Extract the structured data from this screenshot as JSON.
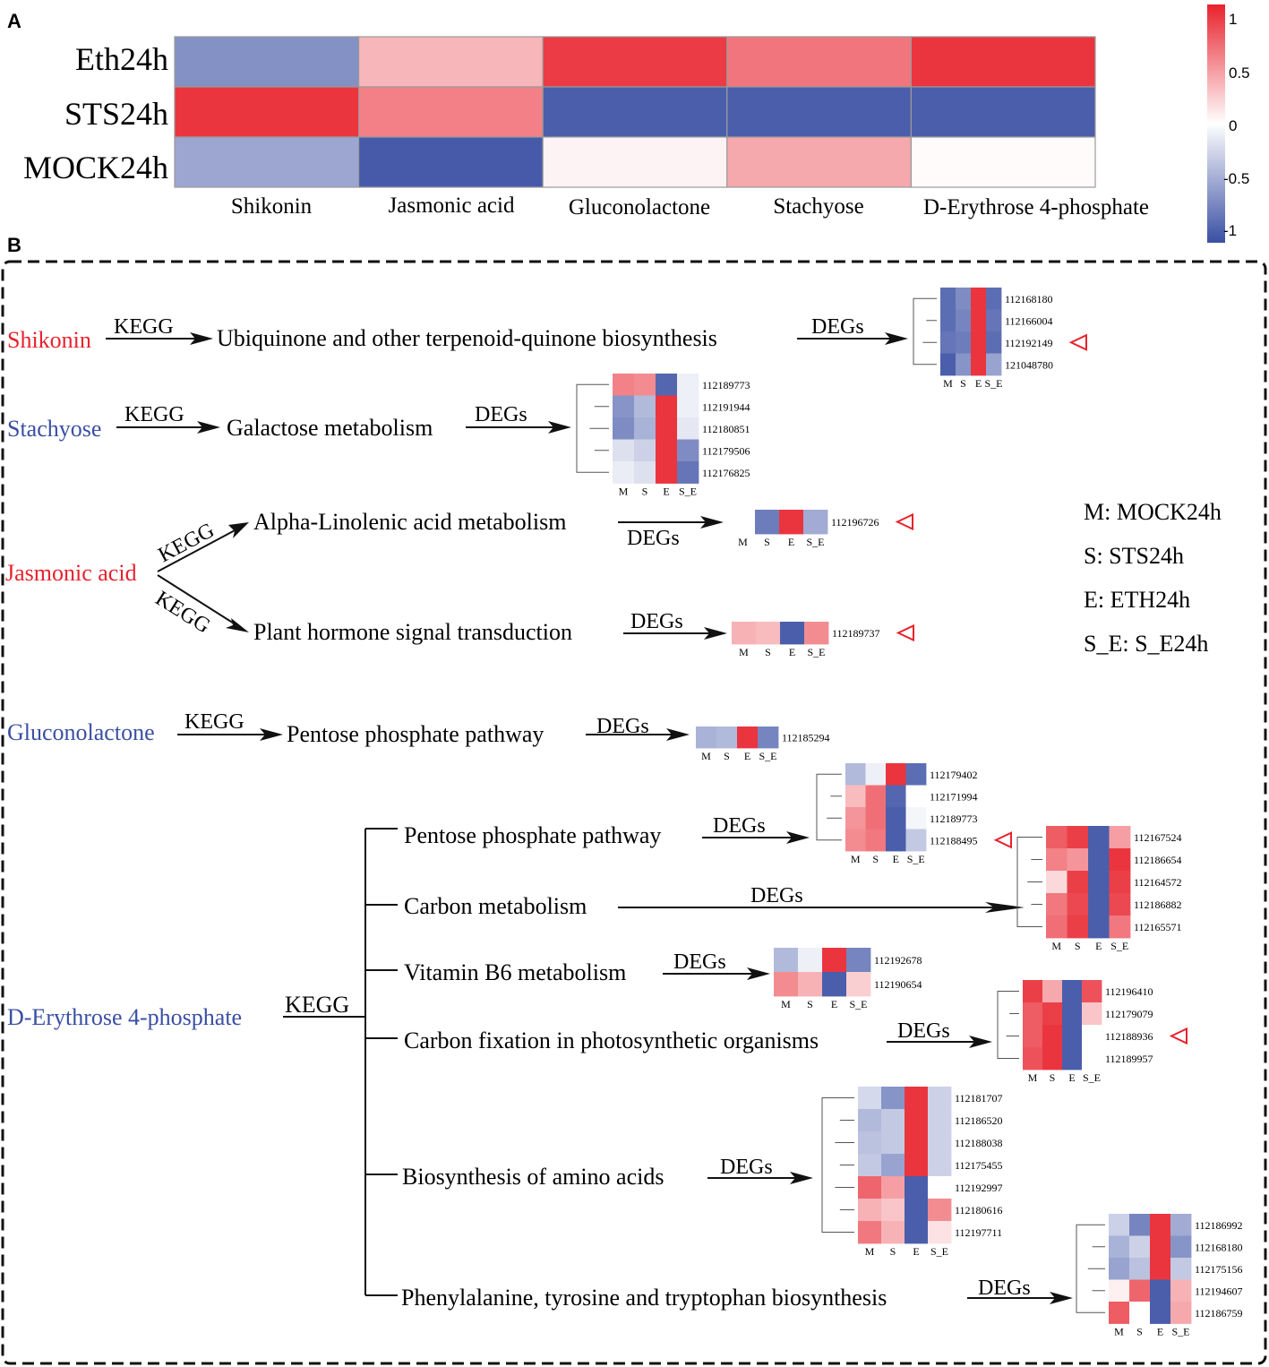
{
  "colors": {
    "red": "#e8222d",
    "blue": "#3a4fa3",
    "white": "#ffffff",
    "marker": "#e8222d",
    "black": "#111111"
  },
  "scale": [
    -1.15,
    1.15
  ],
  "panel_a": {
    "label": "A",
    "rows": [
      "Eth24h",
      "STS24h",
      "MOCK24h"
    ],
    "columns": [
      "Shikonin",
      "Jasmonic acid",
      "Gluconolactone",
      "Stachyose",
      "D-Erythrose 4-phosphate"
    ],
    "values": [
      [
        -0.72,
        0.38,
        1.02,
        0.72,
        1.05
      ],
      [
        1.05,
        0.66,
        -1.05,
        -1.05,
        -1.05
      ],
      [
        -0.58,
        -1.08,
        0.06,
        0.45,
        0.02
      ]
    ],
    "colorbar": {
      "ticks": [
        "1",
        "0.5",
        "0",
        "-0.5",
        "-1"
      ],
      "range": [
        -1.15,
        1.15
      ]
    }
  },
  "panel_b": {
    "label": "B",
    "arrow_labels": {
      "kegg": "KEGG",
      "degs": "DEGs"
    },
    "legend": [
      "M: MOCK24h",
      "S: STS24h",
      "E: ETH24h",
      "S_E: S_E24h"
    ],
    "metabolites": {
      "shikonin": "Shikonin",
      "stachyose": "Stachyose",
      "jasmonic": "Jasmonic acid",
      "gluconolactone": "Gluconolactone",
      "erythrose": "D-Erythrose 4-phosphate"
    },
    "pathways": {
      "ubiquinone": "Ubiquinone and other terpenoid-quinone biosynthesis",
      "galactose": "Galactose metabolism",
      "linolenic": "Alpha-Linolenic acid metabolism",
      "hormone": "Plant hormone signal transduction",
      "pentose1": "Pentose phosphate pathway",
      "pentose2": "Pentose phosphate pathway",
      "carbon": "Carbon metabolism",
      "b6": "Vitamin B6 metabolism",
      "fixation": "Carbon fixation in photosynthetic organisms",
      "amino": "Biosynthesis of amino acids",
      "phenyl": "Phenylalanine, tyrosine and tryptophan biosynthesis"
    },
    "heatmaps": [
      {
        "id": "ubiquinone",
        "cols": [
          "M",
          "S",
          "E",
          "S_E"
        ],
        "genes": [
          "112168180",
          "112166004",
          "112192149",
          "121048780"
        ],
        "marked": [
          "112192149"
        ],
        "values": [
          [
            -0.95,
            -0.75,
            1.05,
            -0.95
          ],
          [
            -0.95,
            -0.8,
            1.05,
            -0.9
          ],
          [
            -0.9,
            -0.85,
            1.05,
            -0.95
          ],
          [
            -1.05,
            -0.7,
            1.05,
            -0.6
          ]
        ]
      },
      {
        "id": "galactose",
        "cols": [
          "M",
          "S",
          "E",
          "S_E"
        ],
        "genes": [
          "112189773",
          "112191944",
          "112180851",
          "112179506",
          "112176825"
        ],
        "marked": [],
        "values": [
          [
            0.65,
            0.6,
            -1.0,
            -0.1
          ],
          [
            -0.7,
            -0.45,
            1.05,
            -0.1
          ],
          [
            -0.75,
            -0.5,
            1.05,
            -0.15
          ],
          [
            -0.2,
            -0.3,
            1.05,
            -0.75
          ],
          [
            -0.12,
            -0.2,
            1.05,
            -0.9
          ]
        ]
      },
      {
        "id": "linolenic",
        "cols": [
          "M",
          "S",
          "E",
          "S_E"
        ],
        "genes": [
          "112196726"
        ],
        "marked": [
          "112196726"
        ],
        "values": [
          [
            0.0,
            -0.85,
            1.05,
            -0.55
          ]
        ]
      },
      {
        "id": "hormone",
        "cols": [
          "M",
          "S",
          "E",
          "S_E"
        ],
        "genes": [
          "112189737"
        ],
        "marked": [
          "112189737"
        ],
        "values": [
          [
            0.4,
            0.35,
            -1.05,
            0.6
          ]
        ]
      },
      {
        "id": "pentose1",
        "cols": [
          "M",
          "S",
          "E",
          "S_E"
        ],
        "genes": [
          "112185294"
        ],
        "marked": [],
        "values": [
          [
            -0.5,
            -0.45,
            1.05,
            -0.8
          ]
        ]
      },
      {
        "id": "pentose2",
        "cols": [
          "M",
          "S",
          "E",
          "S_E"
        ],
        "genes": [
          "112179402",
          "112171994",
          "112189773",
          "112188495"
        ],
        "marked": [
          "112188495"
        ],
        "values": [
          [
            -0.45,
            -0.1,
            1.05,
            -0.95
          ],
          [
            0.35,
            0.75,
            -1.0,
            0.0
          ],
          [
            0.55,
            0.75,
            -1.05,
            -0.06
          ],
          [
            0.6,
            0.7,
            -1.05,
            -0.35
          ]
        ]
      },
      {
        "id": "carbon",
        "cols": [
          "M",
          "S",
          "E",
          "S_E"
        ],
        "genes": [
          "112167524",
          "112186654",
          "112164572",
          "112186882",
          "112165571"
        ],
        "marked": [],
        "values": [
          [
            0.85,
            1.0,
            -1.05,
            0.5
          ],
          [
            0.65,
            0.55,
            -1.05,
            1.05
          ],
          [
            0.2,
            1.0,
            -1.05,
            1.0
          ],
          [
            0.7,
            0.95,
            -1.05,
            0.95
          ],
          [
            0.75,
            1.0,
            -1.05,
            0.7
          ]
        ]
      },
      {
        "id": "b6",
        "cols": [
          "M",
          "S",
          "E",
          "S_E"
        ],
        "genes": [
          "112192678",
          "112190654"
        ],
        "marked": [],
        "values": [
          [
            -0.45,
            -0.1,
            1.05,
            -0.8
          ],
          [
            0.6,
            0.4,
            -1.05,
            0.25
          ]
        ]
      },
      {
        "id": "fixation",
        "cols": [
          "M",
          "S",
          "E",
          "S_E"
        ],
        "genes": [
          "112196410",
          "112179079",
          "112188936",
          "112189957"
        ],
        "marked": [
          "112188936"
        ],
        "values": [
          [
            1.0,
            0.45,
            -1.05,
            0.9
          ],
          [
            0.85,
            1.0,
            -1.05,
            0.3
          ],
          [
            0.85,
            1.05,
            -1.05,
            0.0
          ],
          [
            0.9,
            1.05,
            -1.05,
            0.0
          ]
        ]
      },
      {
        "id": "amino",
        "cols": [
          "M",
          "S",
          "E",
          "S_E"
        ],
        "genes": [
          "112181707",
          "112186520",
          "112188038",
          "112175455",
          "112192997",
          "112180616",
          "112197711"
        ],
        "marked": [],
        "values": [
          [
            -0.25,
            -0.7,
            1.05,
            -0.3
          ],
          [
            -0.45,
            -0.35,
            1.05,
            -0.3
          ],
          [
            -0.4,
            -0.35,
            1.05,
            -0.3
          ],
          [
            -0.35,
            -0.6,
            1.05,
            -0.3
          ],
          [
            0.8,
            0.5,
            -1.05,
            0.0
          ],
          [
            0.4,
            0.3,
            -1.05,
            0.6
          ],
          [
            0.7,
            0.4,
            -1.05,
            0.15
          ]
        ]
      },
      {
        "id": "phenyl",
        "cols": [
          "M",
          "S",
          "E",
          "S_E"
        ],
        "genes": [
          "112186992",
          "112168180",
          "112175156",
          "112194607",
          "112186759"
        ],
        "marked": [],
        "values": [
          [
            -0.3,
            -0.8,
            1.05,
            -0.55
          ],
          [
            -0.5,
            -0.3,
            1.05,
            -0.7
          ],
          [
            -0.6,
            -0.4,
            1.05,
            -0.35
          ],
          [
            0.08,
            0.8,
            -1.05,
            0.4
          ],
          [
            0.85,
            0.0,
            -1.05,
            0.45
          ]
        ]
      }
    ]
  }
}
